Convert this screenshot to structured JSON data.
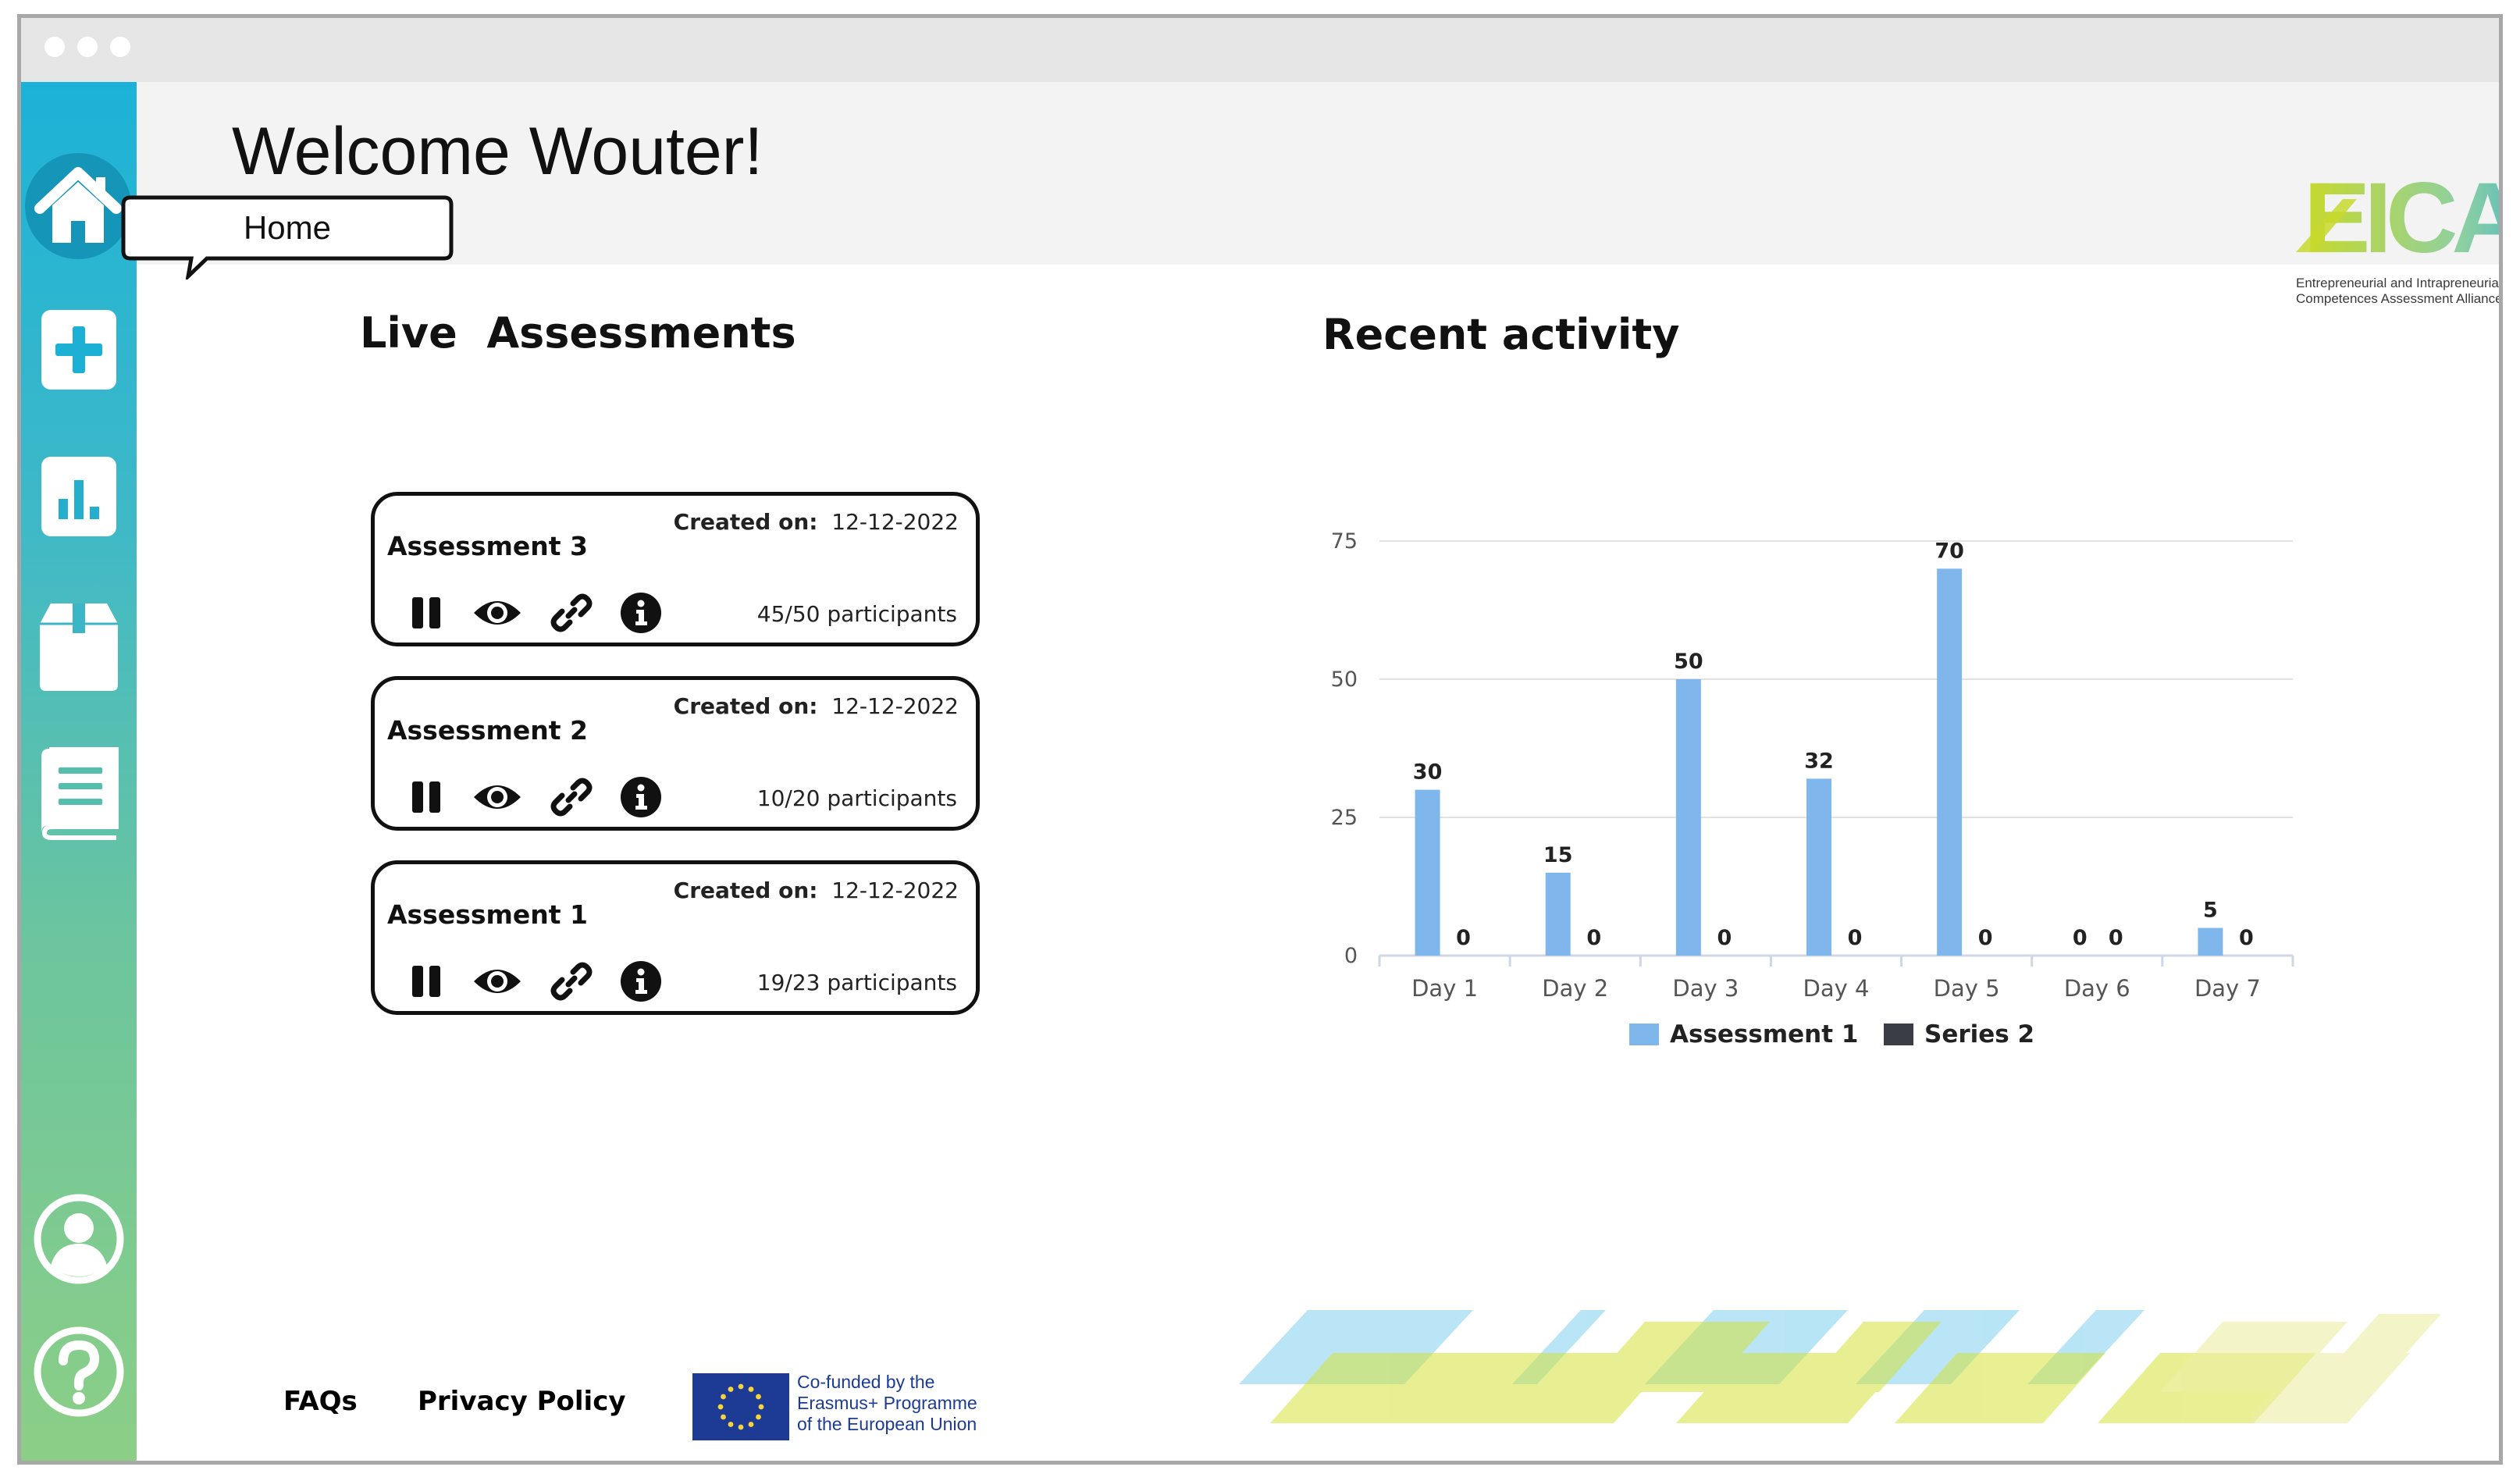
{
  "header": {
    "welcome": "Welcome Wouter!"
  },
  "tooltip": {
    "label": "Home"
  },
  "sidebar": {
    "items": [
      {
        "icon": "home-icon",
        "label": "Home"
      },
      {
        "icon": "plus-icon"
      },
      {
        "icon": "bar-chart-icon"
      },
      {
        "icon": "box-icon"
      },
      {
        "icon": "book-icon"
      },
      {
        "icon": "user-icon"
      },
      {
        "icon": "help-icon"
      }
    ]
  },
  "logo": {
    "text": "EICAA",
    "caption_line1": "Entrepreneurial and Intrapreneurial",
    "caption_line2": "Competences Assessment Alliance"
  },
  "live": {
    "title": "Live  Assessments",
    "created_label": "Created on:",
    "cards": [
      {
        "name": "Assessment 3",
        "created": "12-12-2022",
        "participants": "45/50 participants"
      },
      {
        "name": "Assessment 2",
        "created": "12-12-2022",
        "participants": "10/20 participants"
      },
      {
        "name": "Assessment 1",
        "created": "12-12-2022",
        "participants": "19/23 participants"
      }
    ]
  },
  "activity": {
    "title": "Recent activity"
  },
  "chart_data": {
    "type": "bar",
    "categories": [
      "Day 1",
      "Day 2",
      "Day 3",
      "Day 4",
      "Day 5",
      "Day 6",
      "Day 7"
    ],
    "series": [
      {
        "name": "Assessment 1",
        "values": [
          30,
          15,
          50,
          32,
          70,
          0,
          5
        ],
        "color": "#7fb6ec"
      },
      {
        "name": "Series 2",
        "values": [
          0,
          0,
          0,
          0,
          0,
          0,
          0
        ],
        "color": "#3a3d44"
      }
    ],
    "yticks": [
      0,
      25,
      50,
      75
    ],
    "ylim": [
      0,
      75
    ],
    "grid": true,
    "legend": "bottom"
  },
  "footer": {
    "faqs": "FAQs",
    "privacy": "Privacy Policy",
    "eu_line1": "Co-funded by the",
    "eu_line2": "Erasmus+ Programme",
    "eu_line3": "of the European Union"
  },
  "colors": {
    "faqs": "#d9d21c",
    "privacy": "#1d86c4",
    "bar_primary": "#7fb6ec",
    "bar_secondary": "#3a3d44",
    "sidebar_top": "#1cb2d8",
    "sidebar_bottom": "#8ccf86"
  }
}
